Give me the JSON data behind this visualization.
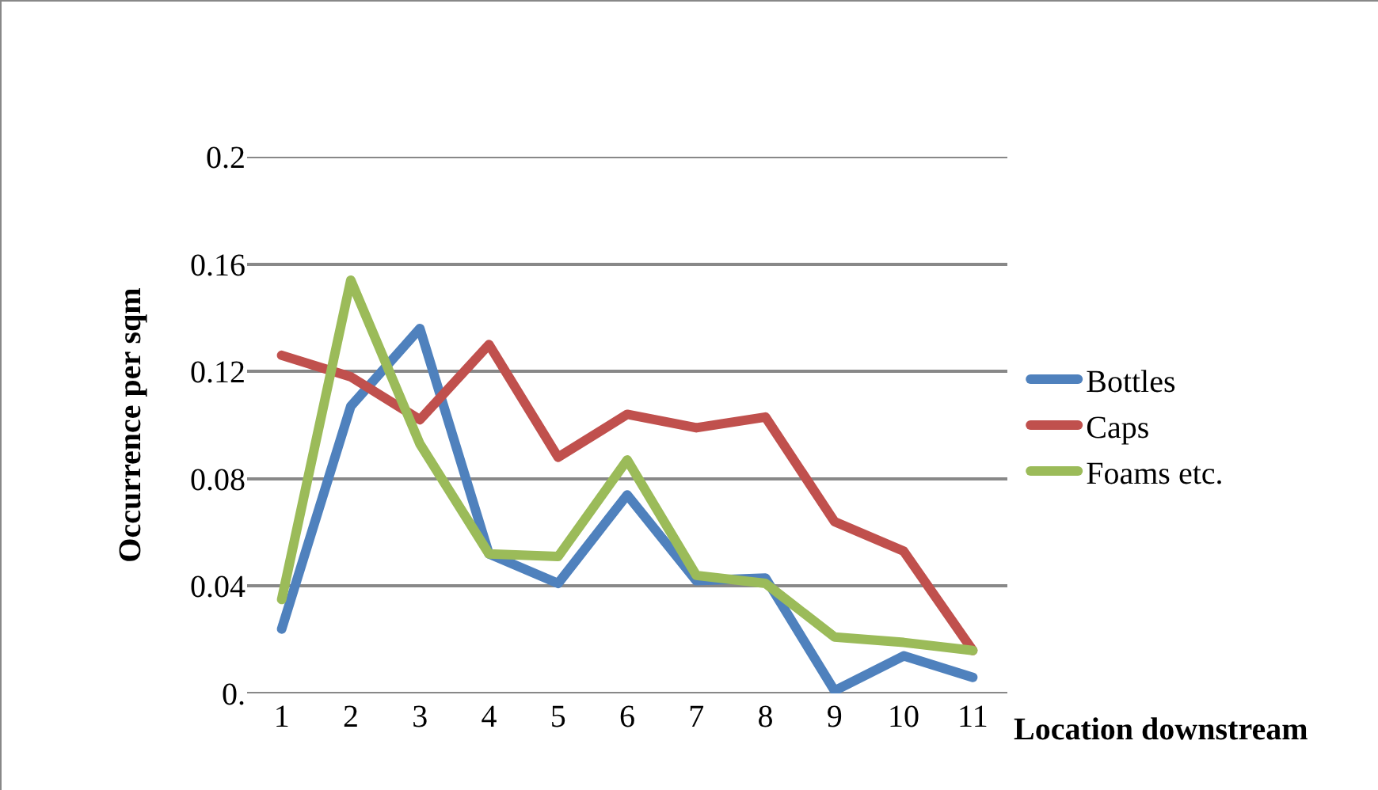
{
  "chart_data": {
    "type": "line",
    "xlabel": "Location downstream",
    "ylabel": "Occurrence per sqm",
    "categories": [
      "1",
      "2",
      "3",
      "4",
      "5",
      "6",
      "7",
      "8",
      "9",
      "10",
      "11"
    ],
    "series": [
      {
        "name": "Bottles",
        "color": "#4f81bd",
        "values": [
          0.024,
          0.107,
          0.136,
          0.052,
          0.041,
          0.074,
          0.042,
          0.043,
          0.001,
          0.014,
          0.006
        ]
      },
      {
        "name": "Caps",
        "color": "#c0504d",
        "values": [
          0.126,
          0.118,
          0.102,
          0.13,
          0.088,
          0.104,
          0.099,
          0.103,
          0.064,
          0.053,
          0.016
        ]
      },
      {
        "name": "Foams etc.",
        "color": "#9bbb59",
        "values": [
          0.035,
          0.154,
          0.093,
          0.052,
          0.051,
          0.087,
          0.044,
          0.041,
          0.021,
          0.019,
          0.016
        ]
      }
    ],
    "ylim": [
      0,
      0.2
    ],
    "yticks": [
      {
        "value": 0,
        "label": "0."
      },
      0.04,
      0.08,
      0.12,
      0.16,
      0.2
    ],
    "grid": "y",
    "legend": "right",
    "marker": "none",
    "line_style": "solid"
  }
}
